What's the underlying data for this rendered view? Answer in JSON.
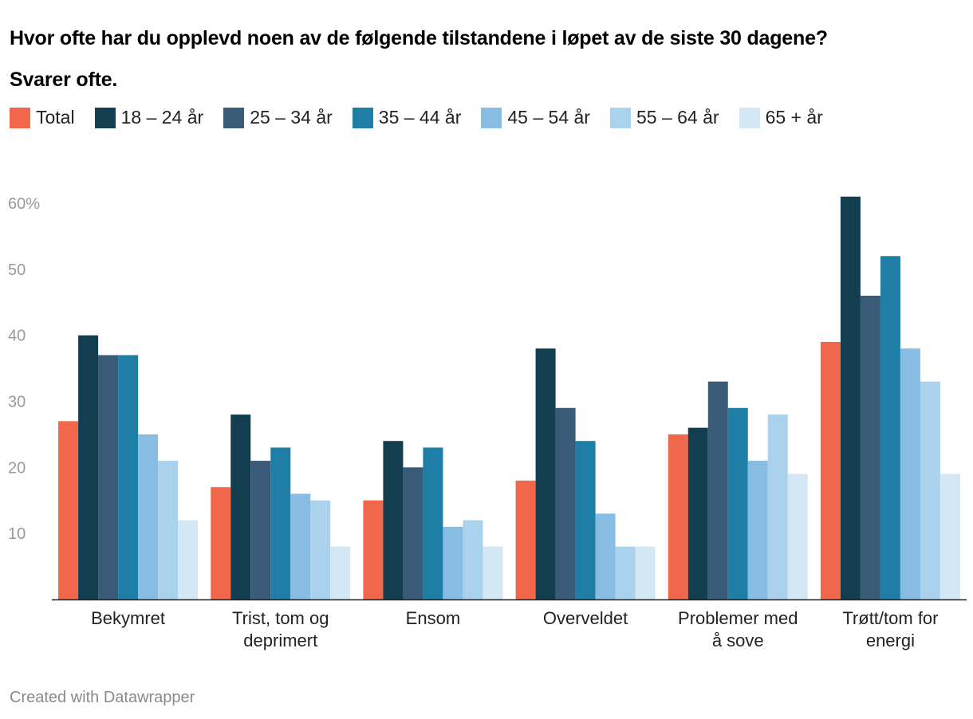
{
  "title_lines": [
    "Hvor ofte har du opplevd noen av de følgende tilstandene i løpet av de siste 30 dagene?",
    "Svarer ofte."
  ],
  "footer": "Created with Datawrapper",
  "chart_data": {
    "type": "bar",
    "categories": [
      "Bekymret",
      "Trist, tom og deprimert",
      "Ensom",
      "Overveldet",
      "Problemer med å sove",
      "Trøtt/tom for energi"
    ],
    "category_label_lines": [
      [
        "Bekymret"
      ],
      [
        "Trist, tom og",
        "deprimert"
      ],
      [
        "Ensom"
      ],
      [
        "Overveldet"
      ],
      [
        "Problemer med",
        "å sove"
      ],
      [
        "Trøtt/tom for",
        "energi"
      ]
    ],
    "series": [
      {
        "name": "Total",
        "color": "#f0674b",
        "values": [
          27,
          17,
          15,
          18,
          25,
          39
        ]
      },
      {
        "name": "18 – 24 år",
        "color": "#123e50",
        "values": [
          40,
          28,
          24,
          38,
          26,
          61
        ]
      },
      {
        "name": "25 – 34 år",
        "color": "#3a5b78",
        "values": [
          37,
          21,
          20,
          29,
          33,
          46
        ]
      },
      {
        "name": "35 – 44 år",
        "color": "#1f7ea6",
        "values": [
          37,
          23,
          23,
          24,
          29,
          52
        ]
      },
      {
        "name": "45 – 54 år",
        "color": "#88bde3",
        "values": [
          25,
          16,
          11,
          13,
          21,
          38
        ]
      },
      {
        "name": "55 – 64 år",
        "color": "#abd2ec",
        "values": [
          21,
          15,
          12,
          8,
          28,
          33
        ]
      },
      {
        "name": "65 + år",
        "color": "#d3e7f5",
        "values": [
          12,
          8,
          8,
          8,
          19,
          19
        ]
      }
    ],
    "yticks": [
      10,
      20,
      30,
      40,
      50,
      60
    ],
    "ytick_labels": [
      "10",
      "20",
      "30",
      "40",
      "50",
      "60%"
    ],
    "ylim": [
      0,
      60
    ],
    "grid": false,
    "legend_position": "top-left"
  }
}
